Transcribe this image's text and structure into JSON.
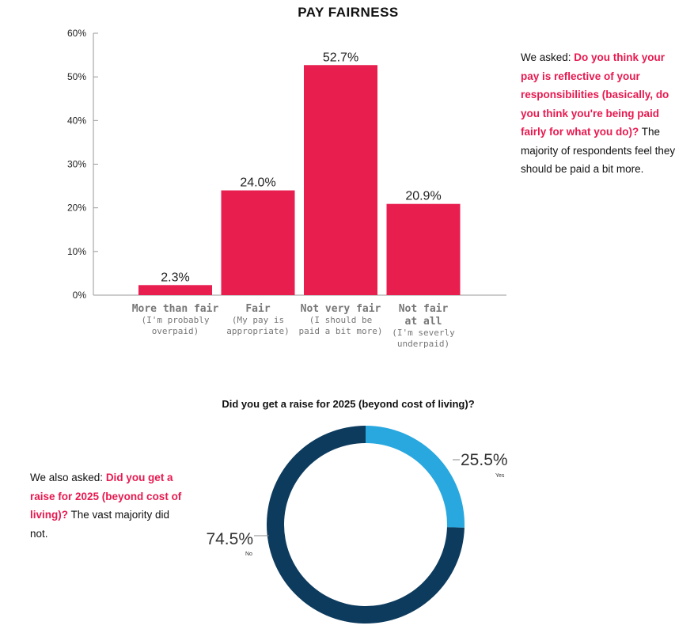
{
  "colors": {
    "bar": "#e81e4f",
    "highlight": "#e8194f",
    "pie_yes": "#29a8df",
    "pie_no": "#0d3b5e",
    "axis": "#999999",
    "category_label": "#777777"
  },
  "chart_data": [
    {
      "type": "bar",
      "title": "PAY FAIRNESS",
      "categories": [
        "More than fair",
        "Fair",
        "Not very fair",
        "Not fair at all"
      ],
      "category_labels": [
        {
          "main": [
            "More than fair"
          ],
          "sub": [
            "(I'm probably",
            "overpaid)"
          ]
        },
        {
          "main": [
            "Fair"
          ],
          "sub": [
            "(My pay is",
            "appropriate)"
          ]
        },
        {
          "main": [
            "Not very fair"
          ],
          "sub": [
            "(I should be",
            "paid a bit more)"
          ]
        },
        {
          "main": [
            "Not fair",
            "at all"
          ],
          "sub": [
            "(I'm severly",
            "underpaid)"
          ]
        }
      ],
      "values": [
        2.3,
        24.0,
        52.7,
        20.9
      ],
      "value_labels": [
        "2.3%",
        "24.0%",
        "52.7%",
        "20.9%"
      ],
      "ylim": [
        0,
        60
      ],
      "yticks": [
        "0%",
        "10%",
        "20%",
        "30%",
        "40%",
        "50%",
        "60%"
      ],
      "xlabel": "",
      "ylabel": "",
      "grid": false
    },
    {
      "type": "pie",
      "style": "donut",
      "title": "Did you get a raise for 2025 (beyond cost of living)?",
      "labels": [
        "Yes",
        "No"
      ],
      "values": [
        25.5,
        74.5
      ],
      "value_labels": [
        "25.5%",
        "74.5%"
      ]
    }
  ],
  "notes": {
    "pay": {
      "lead": "We asked: ",
      "highlight": "Do you think your pay is reflective of your responsibilities (basically, do you think you're being paid fairly for what you do)?",
      "tail": " The majority of respondents feel they should be paid a bit more."
    },
    "raise": {
      "lead": "We also asked: ",
      "highlight": "Did you get a raise for 2025 (beyond cost of living)?",
      "tail": " The vast majority did not."
    }
  }
}
